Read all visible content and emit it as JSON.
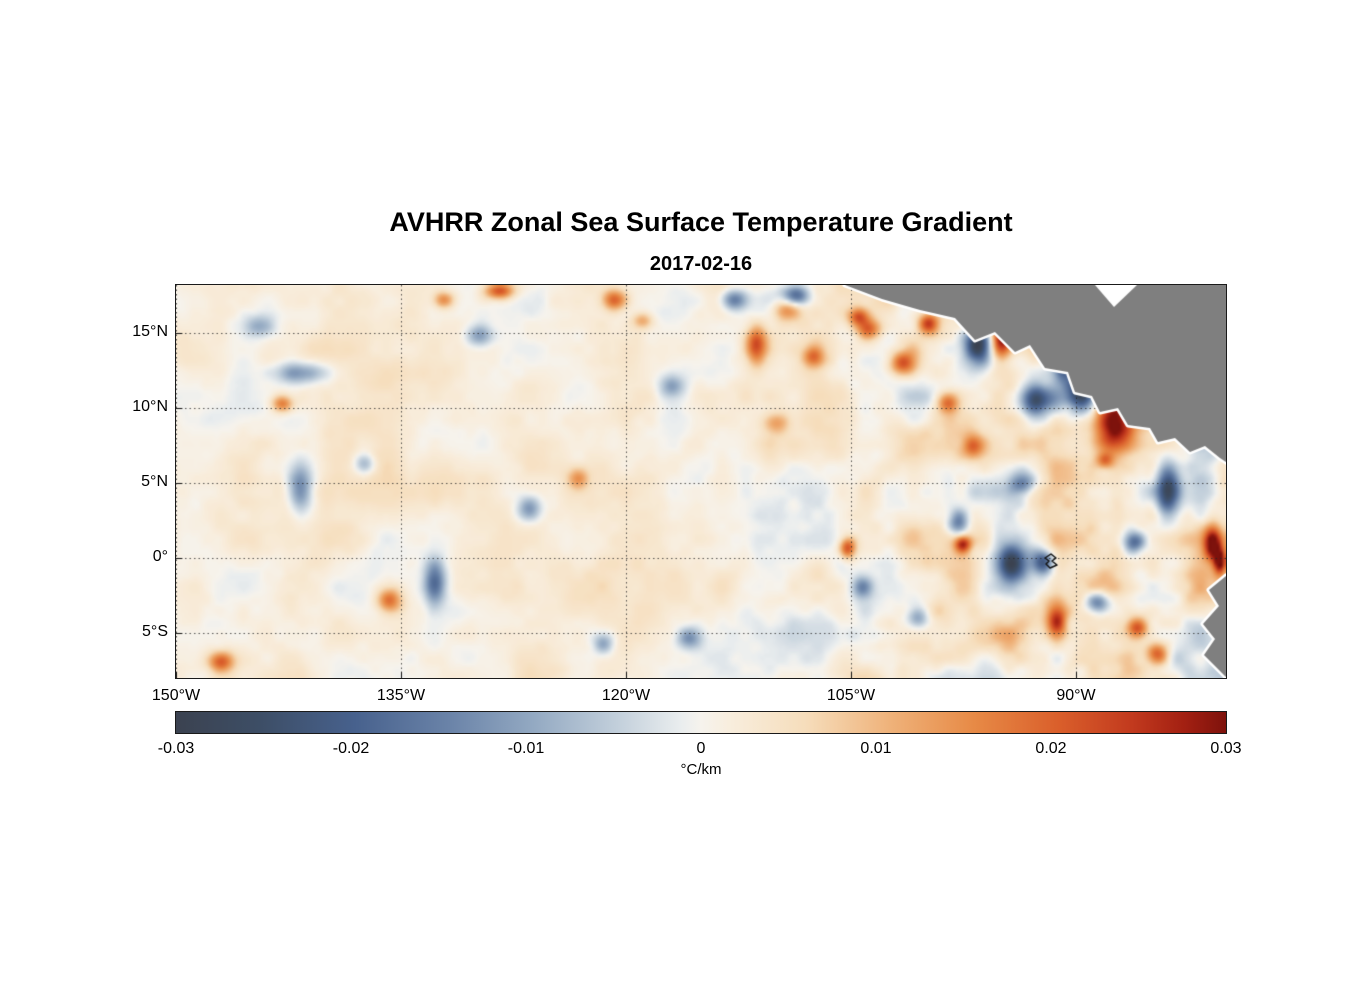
{
  "chart_data": {
    "type": "heatmap",
    "title": "AVHRR Zonal Sea Surface Temperature Gradient",
    "subtitle": "2017-02-16",
    "extent": {
      "lon": [
        -150,
        -80
      ],
      "lat": [
        -8.0,
        18.2
      ]
    },
    "x_axis": {
      "ticks": [
        {
          "value": -150,
          "label": "150°W"
        },
        {
          "value": -135,
          "label": "135°W"
        },
        {
          "value": -120,
          "label": "120°W"
        },
        {
          "value": -105,
          "label": "105°W"
        },
        {
          "value": -90,
          "label": "90°W"
        }
      ]
    },
    "y_axis": {
      "ticks": [
        {
          "value": 15,
          "label": "15°N"
        },
        {
          "value": 10,
          "label": "10°N"
        },
        {
          "value": 5,
          "label": "5°N"
        },
        {
          "value": 0,
          "label": "0°"
        },
        {
          "value": -5,
          "label": "5°S"
        }
      ]
    },
    "grid": {
      "style": "dotted",
      "color": "rgba(40,40,40,0.8)"
    },
    "land_color": "#7f7f7f",
    "colorbar": {
      "unit": "°C/km",
      "range": [
        -0.03,
        0.03
      ],
      "ticks": [
        {
          "value": -0.03,
          "label": "-0.03"
        },
        {
          "value": -0.02,
          "label": "-0.02"
        },
        {
          "value": -0.01,
          "label": "-0.01"
        },
        {
          "value": 0,
          "label": "0"
        },
        {
          "value": 0.01,
          "label": "0.01"
        },
        {
          "value": 0.02,
          "label": "0.02"
        },
        {
          "value": 0.03,
          "label": "0.03"
        }
      ],
      "stops": [
        {
          "t": 0.0,
          "color": "#3b4250"
        },
        {
          "t": 0.08,
          "color": "#3d4e66"
        },
        {
          "t": 0.17,
          "color": "#47618d"
        },
        {
          "t": 0.26,
          "color": "#6a83a8"
        },
        {
          "t": 0.34,
          "color": "#93a9c2"
        },
        {
          "t": 0.42,
          "color": "#c2cfdb"
        },
        {
          "t": 0.48,
          "color": "#e9edee"
        },
        {
          "t": 0.5,
          "color": "#f6f3ed"
        },
        {
          "t": 0.53,
          "color": "#f8eddc"
        },
        {
          "t": 0.6,
          "color": "#f6ddbb"
        },
        {
          "t": 0.68,
          "color": "#efb27a"
        },
        {
          "t": 0.76,
          "color": "#e78a46"
        },
        {
          "t": 0.84,
          "color": "#da5f2b"
        },
        {
          "t": 0.91,
          "color": "#c23a1e"
        },
        {
          "t": 0.96,
          "color": "#a32012"
        },
        {
          "t": 1.0,
          "color": "#7e120c"
        }
      ]
    },
    "background_field": {
      "tint": 0.0016,
      "tint_variation": 0.0012,
      "noise_amplitude": 0.005,
      "east_amplification": 1.4,
      "noise_cell_deg": 3.2
    },
    "features_schema": [
      "lon_deg",
      "lat_deg",
      "sigma_lon_deg",
      "sigma_lat_deg",
      "amplitude_C_per_km"
    ],
    "features": [
      [
        -94.9,
        14.9,
        0.5,
        1.0,
        0.032
      ],
      [
        -96.5,
        14.3,
        0.6,
        0.9,
        -0.03
      ],
      [
        -87.5,
        9.0,
        0.9,
        1.4,
        0.033
      ],
      [
        -89.5,
        11.2,
        0.7,
        1.0,
        -0.03
      ],
      [
        -92.6,
        10.6,
        0.8,
        0.7,
        -0.024
      ],
      [
        -90.8,
        12.9,
        0.5,
        0.7,
        -0.026
      ],
      [
        -101.5,
        13.0,
        0.7,
        0.6,
        0.02
      ],
      [
        -103.8,
        15.3,
        0.6,
        0.5,
        0.018
      ],
      [
        -99.8,
        15.7,
        0.5,
        0.5,
        0.022
      ],
      [
        -109.2,
        16.6,
        0.7,
        0.5,
        0.016
      ],
      [
        -111.3,
        14.3,
        0.5,
        0.9,
        0.02
      ],
      [
        -108.6,
        17.6,
        0.6,
        0.5,
        -0.02
      ],
      [
        -112.8,
        17.3,
        0.6,
        0.5,
        -0.018
      ],
      [
        -120.8,
        17.3,
        0.6,
        0.5,
        0.02
      ],
      [
        -128.5,
        17.9,
        0.7,
        0.4,
        0.022
      ],
      [
        -132.2,
        17.3,
        0.5,
        0.4,
        0.015
      ],
      [
        -129.8,
        14.9,
        0.6,
        0.5,
        -0.012
      ],
      [
        -141.8,
        12.4,
        1.2,
        0.5,
        -0.013
      ],
      [
        -141.8,
        4.6,
        0.6,
        1.1,
        -0.018
      ],
      [
        -132.8,
        -1.7,
        0.5,
        1.0,
        -0.02
      ],
      [
        -135.8,
        -2.9,
        0.6,
        0.6,
        0.018
      ],
      [
        -147.1,
        -7.0,
        0.6,
        0.5,
        0.02
      ],
      [
        -126.5,
        3.3,
        0.6,
        0.6,
        -0.014
      ],
      [
        -123.2,
        5.3,
        0.5,
        0.5,
        0.012
      ],
      [
        -115.8,
        -5.4,
        0.6,
        0.5,
        -0.014
      ],
      [
        -105.2,
        0.6,
        0.4,
        0.5,
        0.022
      ],
      [
        -104.2,
        -2.0,
        0.5,
        0.5,
        -0.015
      ],
      [
        -97.8,
        2.4,
        0.5,
        0.6,
        -0.018
      ],
      [
        -97.5,
        0.9,
        0.4,
        0.4,
        0.024
      ],
      [
        -94.2,
        -0.4,
        0.7,
        0.8,
        -0.028
      ],
      [
        -92.1,
        -0.3,
        0.5,
        0.6,
        -0.024
      ],
      [
        -91.2,
        -4.4,
        0.5,
        0.9,
        0.026
      ],
      [
        -88.5,
        -3.0,
        0.6,
        0.5,
        -0.02
      ],
      [
        -83.8,
        4.6,
        0.5,
        1.2,
        -0.026
      ],
      [
        -80.8,
        0.9,
        0.4,
        0.8,
        0.026
      ],
      [
        -80.3,
        -0.3,
        0.3,
        0.6,
        0.028
      ],
      [
        -85.8,
        -4.7,
        0.5,
        0.5,
        0.02
      ],
      [
        -118.9,
        15.9,
        0.5,
        0.4,
        0.012
      ],
      [
        -104.5,
        16.2,
        0.5,
        0.4,
        0.018
      ],
      [
        -107.5,
        13.5,
        0.5,
        0.5,
        0.014
      ],
      [
        -96.8,
        7.5,
        0.5,
        0.5,
        0.014
      ],
      [
        -98.5,
        10.4,
        0.5,
        0.5,
        0.018
      ],
      [
        -93.5,
        5.0,
        0.6,
        0.5,
        -0.016
      ],
      [
        -86.0,
        1.0,
        0.5,
        0.5,
        -0.018
      ],
      [
        -84.5,
        -6.5,
        0.5,
        0.5,
        0.018
      ],
      [
        -88.0,
        6.5,
        0.4,
        0.4,
        0.016
      ],
      [
        -100.5,
        -4.0,
        0.5,
        0.5,
        -0.012
      ],
      [
        -143.0,
        10.3,
        0.5,
        0.4,
        0.016
      ],
      [
        -144.5,
        15.5,
        0.8,
        0.6,
        -0.01
      ],
      [
        -137.5,
        6.3,
        0.5,
        0.5,
        -0.012
      ],
      [
        -121.5,
        -5.8,
        0.5,
        0.5,
        -0.012
      ],
      [
        -91.5,
        16.3,
        0.5,
        0.5,
        -0.022
      ],
      [
        -95.5,
        16.8,
        0.4,
        0.4,
        0.02
      ],
      [
        -110.0,
        9.0,
        0.6,
        0.5,
        0.01
      ],
      [
        -117.0,
        11.5,
        0.6,
        0.5,
        -0.01
      ]
    ],
    "land": {
      "central_america_coast": [
        [
          669,
          0
        ],
        [
          706,
          14
        ],
        [
          744,
          25
        ],
        [
          779,
          33
        ],
        [
          799,
          55
        ],
        [
          819,
          47
        ],
        [
          839,
          67
        ],
        [
          854,
          60
        ],
        [
          869,
          83
        ],
        [
          892,
          87
        ],
        [
          899,
          107
        ],
        [
          916,
          111
        ],
        [
          924,
          127
        ],
        [
          942,
          123
        ],
        [
          952,
          140
        ],
        [
          974,
          143
        ],
        [
          982,
          157
        ],
        [
          999,
          153
        ],
        [
          1014,
          167
        ],
        [
          1029,
          161
        ],
        [
          1044,
          173
        ],
        [
          1050,
          177
        ]
      ],
      "central_america_white_notch": [
        [
          919,
          0
        ],
        [
          961,
          0
        ],
        [
          938,
          22
        ]
      ],
      "south_america_coast": [
        [
          1050,
          291
        ],
        [
          1033,
          305
        ],
        [
          1043,
          321
        ],
        [
          1027,
          339
        ],
        [
          1039,
          354
        ],
        [
          1028,
          370
        ],
        [
          1044,
          386
        ],
        [
          1050,
          392
        ]
      ],
      "galapagos_outline": [
        [
          869,
          273
        ],
        [
          875,
          269
        ],
        [
          880,
          273
        ],
        [
          876,
          276
        ],
        [
          881,
          280
        ],
        [
          874,
          283
        ],
        [
          870,
          279
        ],
        [
          873,
          276
        ]
      ]
    }
  }
}
